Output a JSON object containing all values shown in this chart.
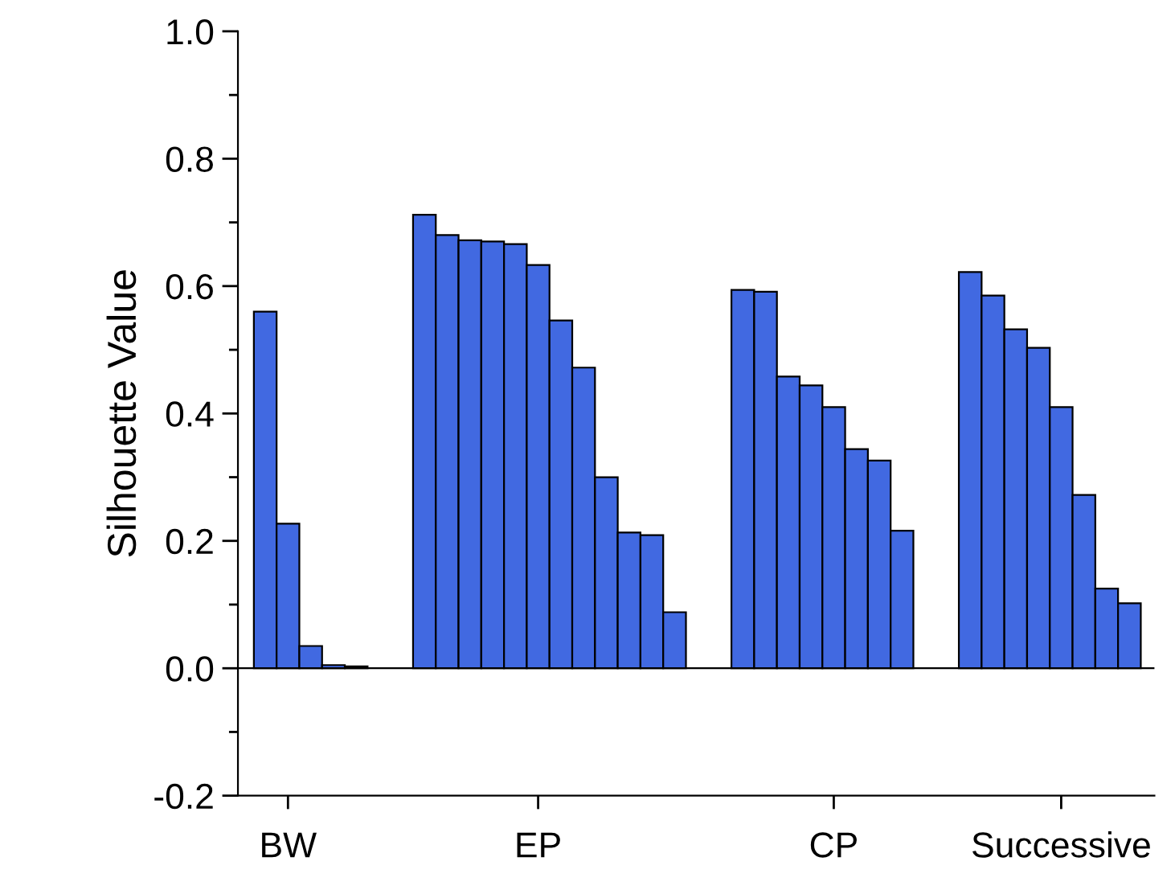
{
  "chart_data": {
    "type": "bar",
    "ylabel": "Silhouette Value",
    "categories": [
      null,
      "BW",
      null,
      null,
      null,
      null,
      null,
      null,
      null,
      null,
      null,
      null,
      "EP",
      null,
      null,
      null,
      null,
      null,
      null,
      null,
      null,
      null,
      null,
      null,
      null,
      "CP",
      null,
      null,
      null,
      null,
      null,
      null,
      null,
      null,
      null,
      "Successive",
      null,
      null,
      null
    ],
    "values": [
      0.56,
      0.227,
      0.035,
      0.005,
      0.003,
      null,
      null,
      0.712,
      0.68,
      0.672,
      0.67,
      0.666,
      0.633,
      0.546,
      0.472,
      0.3,
      0.213,
      0.209,
      0.088,
      null,
      null,
      0.594,
      0.591,
      0.458,
      0.444,
      0.41,
      0.344,
      0.326,
      0.216,
      null,
      null,
      0.622,
      0.585,
      0.532,
      0.503,
      0.41,
      0.272,
      0.125,
      0.102
    ],
    "color": "#4169e1",
    "ylim": [
      -0.2,
      1.0
    ],
    "yticks": [
      {
        "value": -0.2,
        "label": "-0.2"
      },
      {
        "value": -0.1,
        "label": null
      },
      {
        "value": 0,
        "label": "0.0"
      },
      {
        "value": 0.1,
        "label": null
      },
      {
        "value": 0.2,
        "label": "0.2"
      },
      {
        "value": 0.3,
        "label": null
      },
      {
        "value": 0.4,
        "label": "0.4"
      },
      {
        "value": 0.5,
        "label": null
      },
      {
        "value": 0.6,
        "label": "0.6"
      },
      {
        "value": 0.7,
        "label": null
      },
      {
        "value": 0.8,
        "label": "0.8"
      },
      {
        "value": 0.9,
        "label": null
      },
      {
        "value": 1.0,
        "label": "1.0"
      }
    ],
    "ref_lines": [
      {
        "axis": "y",
        "value": 0,
        "color": "#000000"
      }
    ],
    "grid": false,
    "legend": false
  }
}
